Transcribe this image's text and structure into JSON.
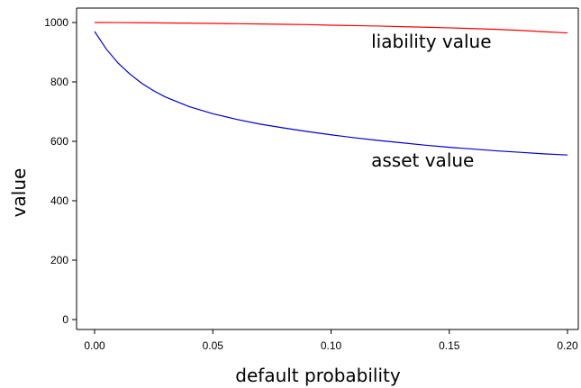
{
  "chart_data": {
    "type": "line",
    "title": "",
    "xlabel": "default probability",
    "ylabel": "value",
    "xlim": [
      0.0,
      0.2
    ],
    "ylim": [
      0,
      1000
    ],
    "x_ticks": [
      "0.00",
      "0.05",
      "0.10",
      "0.15",
      "0.20"
    ],
    "y_ticks": [
      "0",
      "200",
      "400",
      "600",
      "800",
      "1000"
    ],
    "grid": false,
    "series": [
      {
        "color": "#ff0000",
        "x": [
          0.0,
          0.01,
          0.02,
          0.03,
          0.04,
          0.05,
          0.06,
          0.07,
          0.08,
          0.09,
          0.1,
          0.11,
          0.12,
          0.13,
          0.14,
          0.15,
          0.16,
          0.17,
          0.18,
          0.19,
          0.2
        ],
        "values": [
          1000,
          999.8,
          999.2,
          998.5,
          997.8,
          997,
          996,
          995,
          994,
          993,
          991,
          989.5,
          988,
          986,
          984,
          982,
          979.5,
          977,
          973.5,
          969,
          965
        ]
      },
      {
        "color": "#0000cc",
        "x": [
          0.0,
          0.005,
          0.01,
          0.015,
          0.02,
          0.025,
          0.03,
          0.04,
          0.05,
          0.06,
          0.07,
          0.08,
          0.09,
          0.1,
          0.11,
          0.12,
          0.13,
          0.14,
          0.15,
          0.16,
          0.17,
          0.18,
          0.19,
          0.2
        ],
        "values": [
          970,
          910,
          863,
          826,
          795,
          770,
          749,
          717,
          693,
          674,
          658,
          645,
          633,
          622,
          612,
          603,
          595,
          587,
          580,
          574,
          568,
          563,
          558,
          554
        ]
      }
    ],
    "annotations": [
      {
        "text": "liability value",
        "x": 0.117,
        "y": 915
      },
      {
        "text": "asset value",
        "x": 0.117,
        "y": 515
      }
    ]
  }
}
